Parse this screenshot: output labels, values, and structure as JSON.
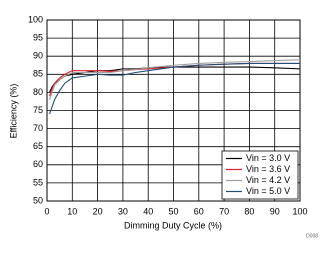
{
  "chart_data": {
    "type": "line",
    "x_label": "Dimming Duty Cycle (%)",
    "y_label": "Efficiency (%)",
    "footnote": "D008",
    "x": [
      1,
      2,
      3,
      5,
      7,
      10,
      15,
      20,
      25,
      30,
      35,
      40,
      50,
      60,
      70,
      80,
      90,
      100
    ],
    "series": [
      {
        "name": "Vin = 3.0 V",
        "color": "#000000",
        "values": [
          80,
          81.5,
          82.5,
          83.5,
          84.5,
          85,
          85.5,
          86,
          86,
          86.5,
          86.5,
          86.8,
          87,
          87,
          87,
          87,
          86.8,
          86.5
        ]
      },
      {
        "name": "Vin = 3.6 V",
        "color": "#e0202a",
        "values": [
          79,
          81,
          82.5,
          84,
          85,
          86,
          86,
          86,
          85.8,
          86,
          86.3,
          86.5,
          87,
          87.5,
          87.8,
          88,
          88,
          88
        ]
      },
      {
        "name": "Vin = 4.2 V",
        "color": "#a0a0a0",
        "values": [
          78,
          80,
          82,
          83.5,
          84.5,
          85.5,
          85.5,
          85.5,
          85.5,
          86,
          86.3,
          86.8,
          87.5,
          88,
          88.3,
          88.5,
          88.8,
          89
        ]
      },
      {
        "name": "Vin = 5.0 V",
        "color": "#1f4e79",
        "values": [
          74,
          76,
          78,
          80.5,
          82.5,
          84,
          84.5,
          85,
          84.8,
          84.8,
          85.5,
          86,
          87,
          87.5,
          87.8,
          88,
          88,
          88
        ]
      }
    ],
    "xlim": [
      0,
      100
    ],
    "xticks": [
      0,
      10,
      20,
      30,
      40,
      50,
      60,
      70,
      80,
      90,
      100
    ],
    "ylim": [
      50,
      100
    ],
    "yticks": [
      50,
      55,
      60,
      65,
      70,
      75,
      80,
      85,
      90,
      95,
      100
    ],
    "grid": true,
    "legend": "lower right"
  }
}
